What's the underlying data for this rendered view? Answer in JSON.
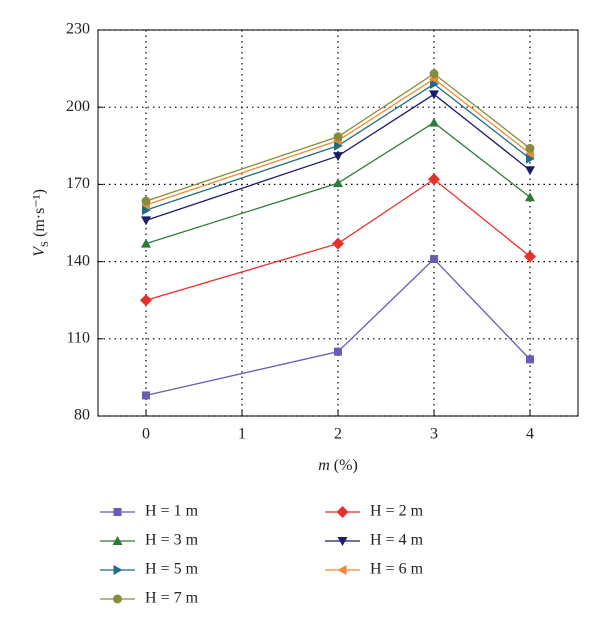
{
  "chart_data": {
    "type": "line",
    "xlabel": {
      "symbol": "m",
      "unit": "(%)"
    },
    "ylabel": {
      "symbol": "V",
      "subscript": "S",
      "unit": "(m·s⁻¹)"
    },
    "x": [
      0,
      2,
      3,
      4
    ],
    "xlim": [
      -0.5,
      4.5
    ],
    "xticks": [
      0,
      1,
      2,
      3,
      4
    ],
    "ylim": [
      80,
      230
    ],
    "yticks": [
      80,
      110,
      140,
      170,
      200,
      230
    ],
    "grid": true,
    "series": [
      {
        "name": "H = 1 m",
        "color": "#6b5bb5",
        "marker": "square",
        "values": [
          88,
          105,
          141,
          102
        ]
      },
      {
        "name": "H = 2 m",
        "color": "#e8302a",
        "marker": "diamond",
        "values": [
          125,
          147,
          172,
          142
        ]
      },
      {
        "name": "H = 3 m",
        "color": "#2e7a3a",
        "marker": "triangle-up",
        "values": [
          147,
          170.5,
          194,
          165
        ]
      },
      {
        "name": "H = 4 m",
        "color": "#1c1c6a",
        "marker": "triangle-down",
        "values": [
          156,
          181,
          205,
          175.5
        ]
      },
      {
        "name": "H = 5 m",
        "color": "#1f6c86",
        "marker": "triangle-right",
        "values": [
          160,
          185,
          209,
          180
        ]
      },
      {
        "name": "H = 6 m",
        "color": "#f08a30",
        "marker": "triangle-left",
        "values": [
          162,
          187,
          211,
          182
        ]
      },
      {
        "name": "H = 7 m",
        "color": "#8c8a3c",
        "marker": "circle",
        "values": [
          163.5,
          188.5,
          213,
          184
        ]
      }
    ]
  }
}
